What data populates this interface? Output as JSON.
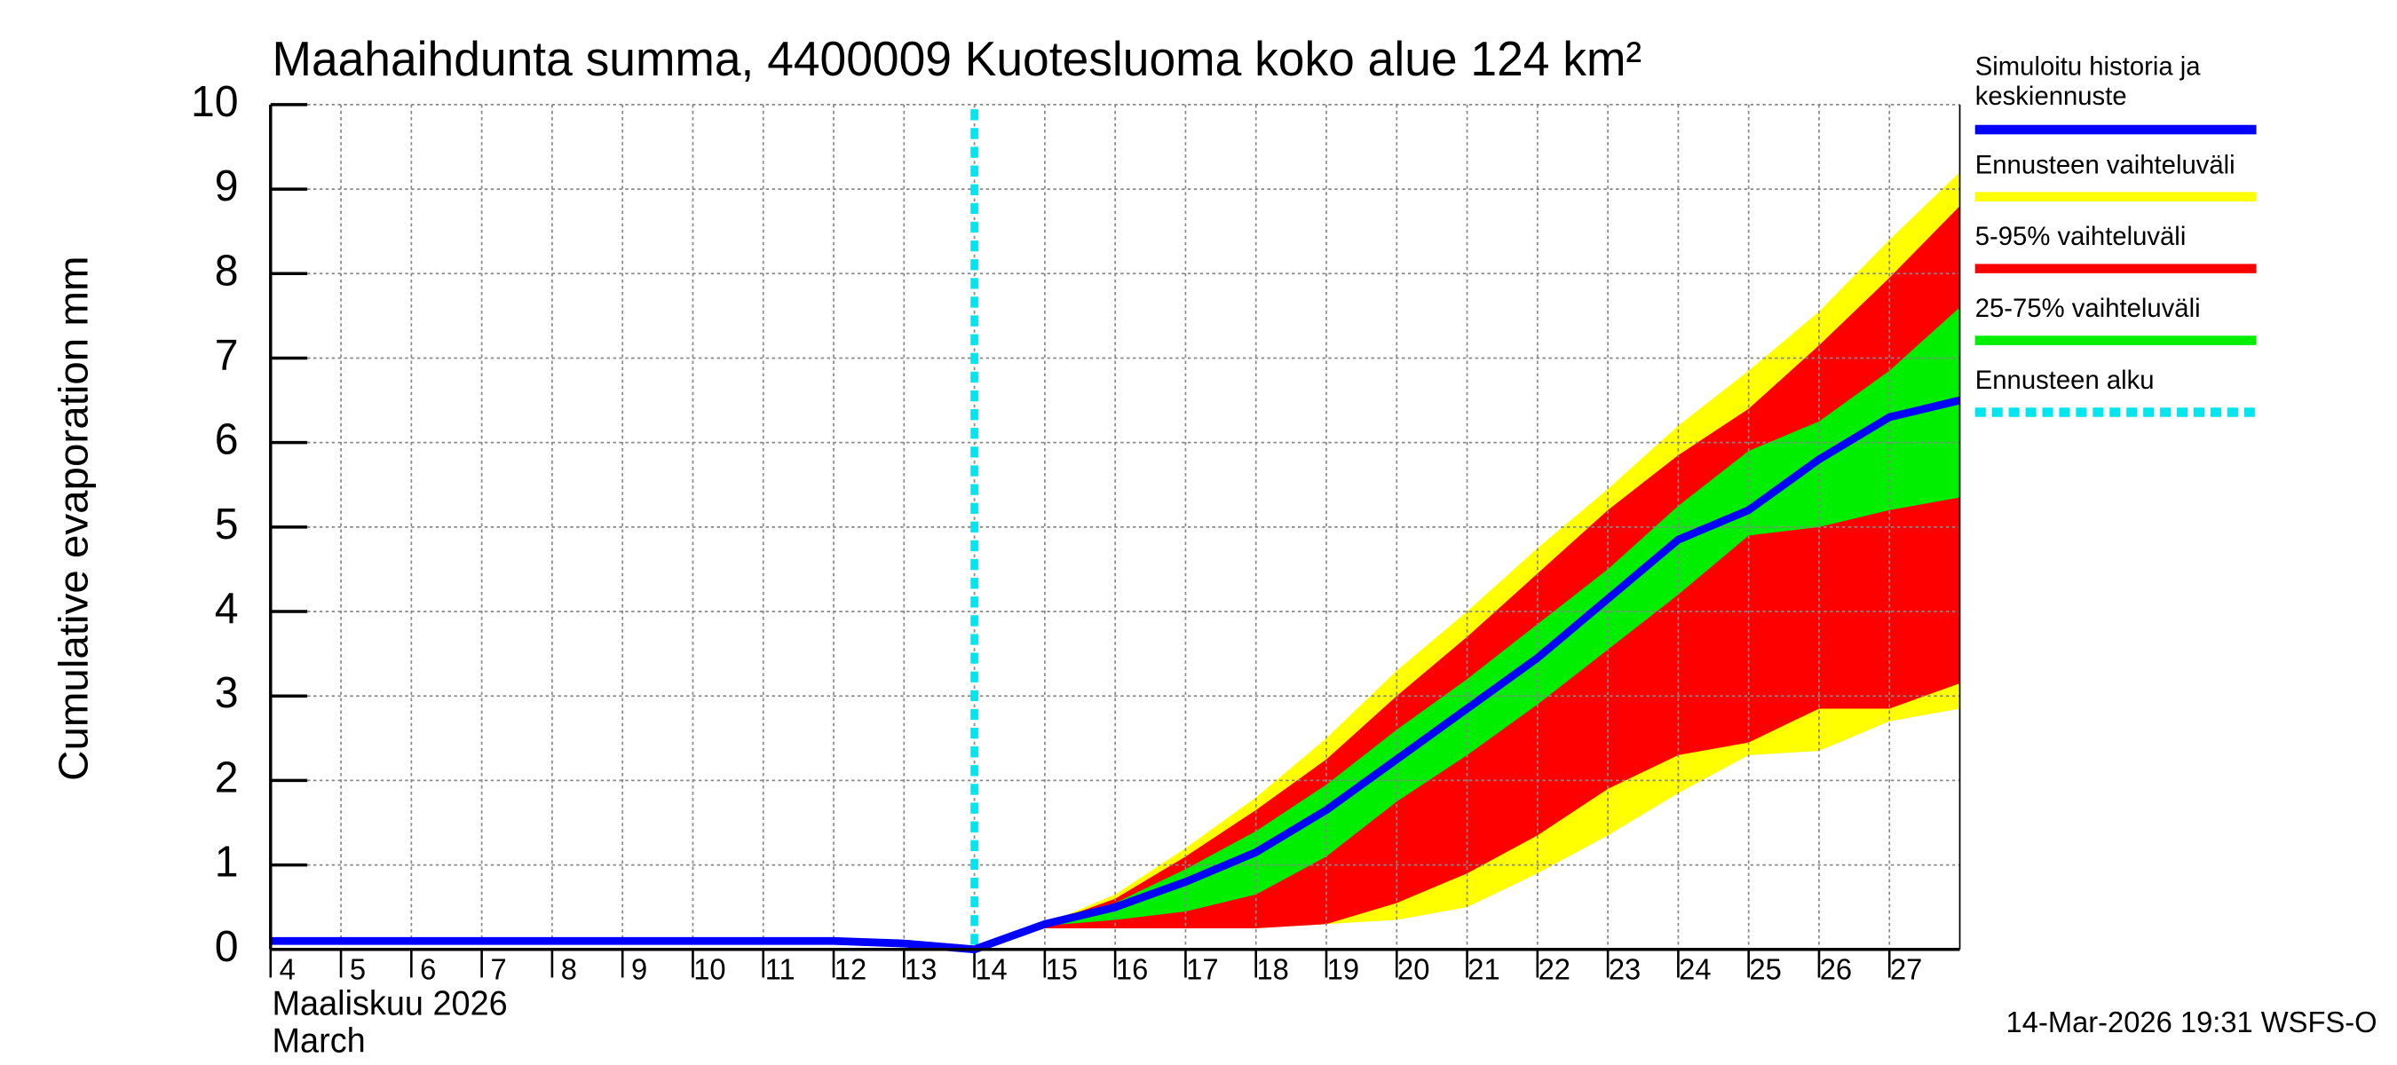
{
  "chart_data": {
    "type": "line",
    "title": "Maahaihdunta summa, 4400009 Kuotesluoma koko alue 124 km²",
    "y_label": "Cumulative evaporation   mm",
    "x_label": [
      "Maaliskuu 2026",
      "March"
    ],
    "footer": "14-Mar-2026 19:31 WSFS-O",
    "xlim": [
      4,
      28
    ],
    "ylim": [
      0,
      10
    ],
    "yticks": [
      0,
      1,
      2,
      3,
      4,
      5,
      6,
      7,
      8,
      9,
      10
    ],
    "xticks": [
      4,
      5,
      6,
      7,
      8,
      9,
      10,
      11,
      12,
      13,
      14,
      15,
      16,
      17,
      18,
      19,
      20,
      21,
      22,
      23,
      24,
      25,
      26,
      27
    ],
    "grid": true,
    "series": [
      {
        "name": "Simuloitu historia ja keskiennuste",
        "color": "#0000ff",
        "x": [
          4,
          5,
          6,
          7,
          8,
          9,
          10,
          11,
          12,
          13,
          14,
          15,
          16,
          17,
          18,
          19,
          20,
          21,
          22,
          23,
          24,
          25,
          26,
          27,
          28
        ],
        "values": [
          0.1,
          0.1,
          0.1,
          0.1,
          0.1,
          0.1,
          0.1,
          0.1,
          0.1,
          0.07,
          0,
          0.3,
          0.5,
          0.8,
          1.15,
          1.65,
          2.25,
          2.85,
          3.45,
          4.15,
          4.85,
          5.2,
          5.8,
          6.3,
          6.5
        ]
      }
    ],
    "band_x": [
      14,
      15,
      16,
      17,
      18,
      19,
      20,
      21,
      22,
      23,
      24,
      25,
      26,
      27,
      28
    ],
    "bands": [
      {
        "name": "Ennusteen vaihteluväli",
        "color": "#ffff00",
        "lower": [
          0,
          0.25,
          0.25,
          0.25,
          0.25,
          0.3,
          0.35,
          0.5,
          0.9,
          1.35,
          1.85,
          2.3,
          2.35,
          2.7,
          2.85
        ],
        "upper": [
          0,
          0.3,
          0.65,
          1.2,
          1.8,
          2.5,
          3.3,
          4.0,
          4.75,
          5.45,
          6.2,
          6.85,
          7.55,
          8.4,
          9.2
        ]
      },
      {
        "name": "5-95% vaihteluväli",
        "color": "#ff0000",
        "lower": [
          0,
          0.25,
          0.25,
          0.25,
          0.25,
          0.3,
          0.55,
          0.9,
          1.35,
          1.9,
          2.3,
          2.45,
          2.85,
          2.85,
          3.15
        ],
        "upper": [
          0,
          0.3,
          0.6,
          1.1,
          1.65,
          2.25,
          3.0,
          3.7,
          4.45,
          5.2,
          5.85,
          6.4,
          7.15,
          7.95,
          8.8
        ]
      },
      {
        "name": "25-75% vaihteluväli",
        "color": "#00ee00",
        "lower": [
          0,
          0.28,
          0.35,
          0.45,
          0.65,
          1.1,
          1.75,
          2.3,
          2.9,
          3.55,
          4.2,
          4.9,
          5.0,
          5.2,
          5.35
        ],
        "upper": [
          0,
          0.3,
          0.55,
          0.95,
          1.4,
          1.95,
          2.6,
          3.2,
          3.85,
          4.5,
          5.25,
          5.9,
          6.25,
          6.85,
          7.6
        ]
      }
    ],
    "forecast_start": {
      "name": "Ennusteen alku",
      "x": 14,
      "color": "#00e5ee"
    }
  }
}
